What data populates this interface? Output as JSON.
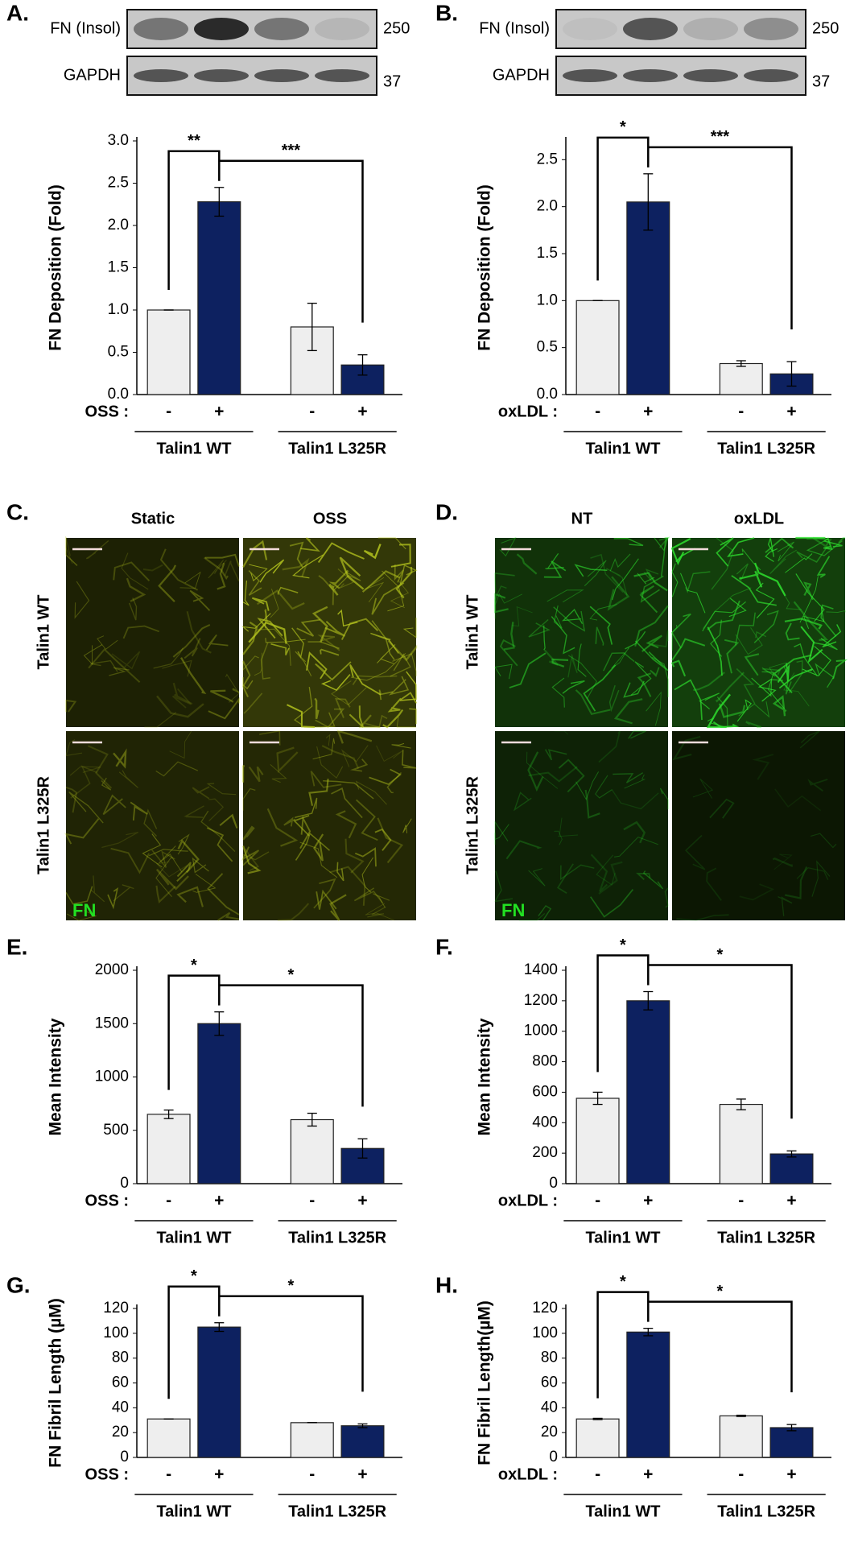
{
  "chart_data": [
    {
      "type": "bar",
      "panel": "A.",
      "ylabel": "FN Deposition (Fold)",
      "treatment": "OSS :",
      "categories": [
        "-",
        "+",
        "-",
        "+"
      ],
      "groups": [
        "Talin1 WT",
        "Talin1 L325R"
      ],
      "values": [
        1.0,
        2.28,
        0.8,
        0.35
      ],
      "errors": [
        0,
        0.17,
        0.28,
        0.12
      ],
      "colors": [
        "#eeeeee",
        "#0d2160",
        "#eeeeee",
        "#0d2160"
      ],
      "ylim": [
        0,
        3.0
      ],
      "yticks": [
        {
          "value": 0,
          "label": "0.0"
        },
        0.5,
        {
          "value": 1,
          "label": "1.0"
        },
        1.5,
        {
          "value": 2,
          "label": "2.0"
        },
        2.5,
        {
          "value": 3,
          "label": "3.0"
        }
      ],
      "significance": [
        "**",
        "***"
      ],
      "blot_labels": [
        "FN (Insol)",
        "GAPDH"
      ],
      "blot_sizes": [
        "250",
        "37"
      ]
    },
    {
      "type": "bar",
      "panel": "B.",
      "ylabel": "FN Deposition (Fold)",
      "treatment": "oxLDL :",
      "categories": [
        "-",
        "+",
        "-",
        "+"
      ],
      "groups": [
        "Talin1 WT",
        "Talin1 L325R"
      ],
      "values": [
        1.0,
        2.05,
        0.33,
        0.22
      ],
      "errors": [
        0,
        0.3,
        0.03,
        0.13
      ],
      "colors": [
        "#eeeeee",
        "#0d2160",
        "#eeeeee",
        "#0d2160"
      ],
      "ylim": [
        0,
        2.7
      ],
      "yticks": [
        {
          "value": 0,
          "label": "0.0"
        },
        0.5,
        {
          "value": 1,
          "label": "1.0"
        },
        1.5,
        {
          "value": 2,
          "label": "2.0"
        },
        2.5
      ],
      "significance": [
        "*",
        "***"
      ],
      "blot_labels": [
        "FN (Insol)",
        "GAPDH"
      ],
      "blot_sizes": [
        "250",
        "37"
      ]
    },
    {
      "type": "bar",
      "panel": "E.",
      "ylabel": "Mean Intensity",
      "treatment": "OSS :",
      "categories": [
        "-",
        "+",
        "-",
        "+"
      ],
      "groups": [
        "Talin1 WT",
        "Talin1 L325R"
      ],
      "values": [
        650,
        1500,
        600,
        330
      ],
      "errors": [
        40,
        110,
        60,
        90
      ],
      "colors": [
        "#eeeeee",
        "#0d2160",
        "#eeeeee",
        "#0d2160"
      ],
      "ylim": [
        0,
        2000
      ],
      "yticks": [
        0,
        500,
        1000,
        1500,
        2000
      ],
      "significance": [
        "*",
        "*"
      ]
    },
    {
      "type": "bar",
      "panel": "F.",
      "ylabel": "Mean Intensity",
      "treatment": "oxLDL :",
      "categories": [
        "-",
        "+",
        "-",
        "+"
      ],
      "groups": [
        "Talin1 WT",
        "Talin1 L325R"
      ],
      "values": [
        560,
        1200,
        520,
        195
      ],
      "errors": [
        40,
        60,
        35,
        20
      ],
      "colors": [
        "#eeeeee",
        "#0d2160",
        "#eeeeee",
        "#0d2160"
      ],
      "ylim": [
        0,
        1400
      ],
      "yticks": [
        0,
        200,
        400,
        600,
        800,
        1000,
        1200,
        1400
      ],
      "significance": [
        "*",
        "*"
      ]
    },
    {
      "type": "bar",
      "panel": "G.",
      "ylabel": "FN Fibril Length (µM)",
      "treatment": "OSS :",
      "categories": [
        "-",
        "+",
        "-",
        "+"
      ],
      "groups": [
        "Talin1 WT",
        "Talin1 L325R"
      ],
      "values": [
        31,
        105,
        28,
        25.5
      ],
      "errors": [
        0,
        3.5,
        0,
        1.5
      ],
      "colors": [
        "#eeeeee",
        "#0d2160",
        "#eeeeee",
        "#0d2160"
      ],
      "ylim": [
        0,
        120
      ],
      "yticks": [
        0,
        20,
        40,
        60,
        80,
        100,
        120
      ],
      "significance": [
        "*",
        "*"
      ]
    },
    {
      "type": "bar",
      "panel": "H.",
      "ylabel": "FN Fibril Length(µM)",
      "treatment": "oxLDL :",
      "categories": [
        "-",
        "+",
        "-",
        "+"
      ],
      "groups": [
        "Talin1 WT",
        "Talin1 L325R"
      ],
      "values": [
        31,
        101,
        33.5,
        24
      ],
      "errors": [
        0.5,
        3,
        0.5,
        2.5
      ],
      "colors": [
        "#eeeeee",
        "#0d2160",
        "#eeeeee",
        "#0d2160"
      ],
      "ylim": [
        0,
        120
      ],
      "yticks": [
        0,
        20,
        40,
        60,
        80,
        100,
        120
      ],
      "significance": [
        "*",
        "*"
      ]
    }
  ],
  "micrographs": [
    {
      "panel": "C.",
      "columns": [
        "Static",
        "OSS"
      ],
      "rows": [
        "Talin1 WT",
        "Talin1 L325R"
      ],
      "stain": "FN",
      "color": "#b4c41e"
    },
    {
      "panel": "D.",
      "columns": [
        "NT",
        "oxLDL"
      ],
      "rows": [
        "Talin1 WT",
        "Talin1 L325R"
      ],
      "stain": "FN",
      "color": "#2ee02e"
    }
  ]
}
